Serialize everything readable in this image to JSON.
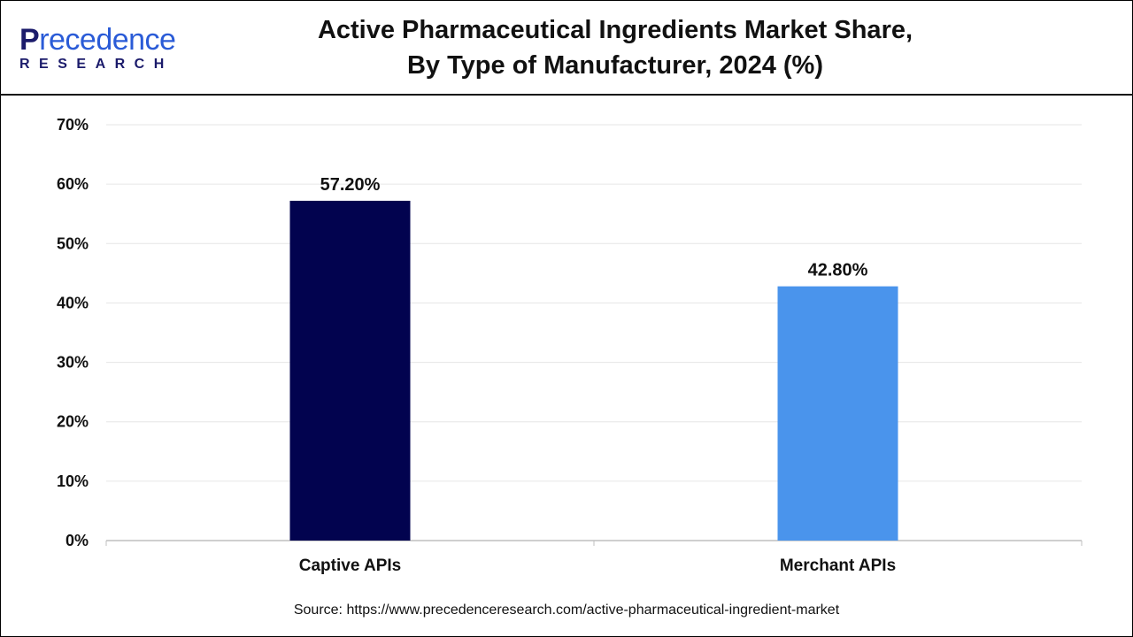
{
  "logo": {
    "top_initial": "P",
    "top_rest": "recedence",
    "bottom": "RESEARCH"
  },
  "title_line1": "Active Pharmaceutical Ingredients Market Share,",
  "title_line2": "By Type of Manufacturer, 2024 (%)",
  "source": "Source: https://www.precedenceresearch.com/active-pharmaceutical-ingredient-market",
  "chart_data": {
    "type": "bar",
    "title": "Active Pharmaceutical Ingredients Market Share, By Type of Manufacturer, 2024 (%)",
    "categories": [
      "Captive APIs",
      "Merchant APIs"
    ],
    "values": [
      57.2,
      42.8
    ],
    "data_labels": [
      "57.20%",
      "42.80%"
    ],
    "colors": [
      "#02034f",
      "#4a94ec"
    ],
    "ylim": [
      0,
      70
    ],
    "yticks": [
      "0%",
      "10%",
      "20%",
      "30%",
      "40%",
      "50%",
      "60%",
      "70%"
    ],
    "grid": true,
    "xlabel": "",
    "ylabel": ""
  }
}
